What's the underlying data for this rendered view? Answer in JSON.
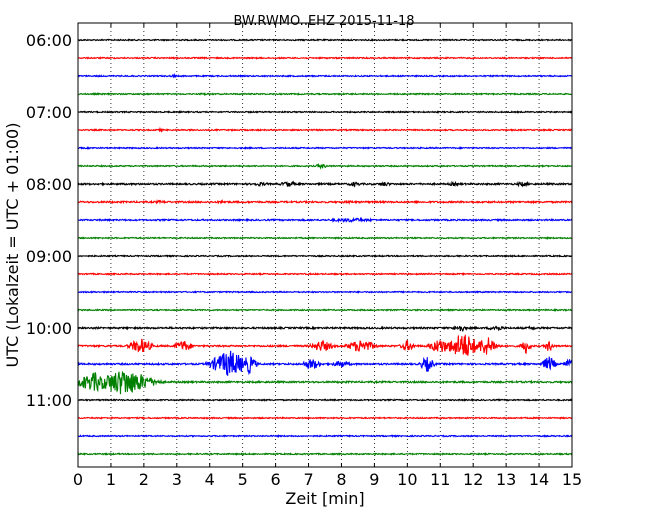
{
  "chart_data": {
    "type": "line",
    "title": "BW.RWMO..EHZ 2015-11-18",
    "xlabel": "Zeit  [min]",
    "ylabel": "UTC (Lokalzeit = UTC + 01:00)",
    "xlim": [
      0,
      15
    ],
    "x_ticks": [
      "0",
      "1",
      "2",
      "3",
      "4",
      "5",
      "6",
      "7",
      "8",
      "9",
      "10",
      "11",
      "12",
      "13",
      "14",
      "15"
    ],
    "y_ticks": [
      "06:00",
      "07:00",
      "08:00",
      "09:00",
      "10:00",
      "11:00"
    ],
    "grid": true,
    "trace_interval_minutes": 15,
    "trace_colors": [
      "#000000",
      "#ff0000",
      "#0000ff",
      "#008000"
    ],
    "traces": [
      {
        "start": "06:00",
        "color": "#000000",
        "amplitude": 0.6,
        "bursts": []
      },
      {
        "start": "06:15",
        "color": "#ff0000",
        "amplitude": 0.6,
        "bursts": []
      },
      {
        "start": "06:30",
        "color": "#0000ff",
        "amplitude": 0.6,
        "bursts": [
          {
            "t": 2.9,
            "amp": 1.5,
            "dur": 0.2
          }
        ]
      },
      {
        "start": "06:45",
        "color": "#008000",
        "amplitude": 0.6,
        "bursts": [
          {
            "t": 3.8,
            "amp": 1.5,
            "dur": 0.2
          }
        ]
      },
      {
        "start": "07:00",
        "color": "#000000",
        "amplitude": 0.6,
        "bursts": []
      },
      {
        "start": "07:15",
        "color": "#ff0000",
        "amplitude": 0.6,
        "bursts": [
          {
            "t": 2.5,
            "amp": 1.5,
            "dur": 0.2
          }
        ]
      },
      {
        "start": "07:30",
        "color": "#0000ff",
        "amplitude": 0.6,
        "bursts": []
      },
      {
        "start": "07:45",
        "color": "#008000",
        "amplitude": 0.6,
        "bursts": [
          {
            "t": 7.4,
            "amp": 2.5,
            "dur": 0.3
          }
        ]
      },
      {
        "start": "08:00",
        "color": "#000000",
        "amplitude": 0.8,
        "bursts": [
          {
            "t": 5.5,
            "amp": 2.0,
            "dur": 0.5
          },
          {
            "t": 6.4,
            "amp": 3.0,
            "dur": 0.4
          },
          {
            "t": 8.4,
            "amp": 2.5,
            "dur": 0.3
          },
          {
            "t": 9.3,
            "amp": 2.5,
            "dur": 0.3
          },
          {
            "t": 11.4,
            "amp": 2.0,
            "dur": 0.3
          },
          {
            "t": 13.5,
            "amp": 2.5,
            "dur": 0.3
          }
        ]
      },
      {
        "start": "08:15",
        "color": "#ff0000",
        "amplitude": 0.8,
        "bursts": [
          {
            "t": 2.5,
            "amp": 1.5,
            "dur": 0.4
          },
          {
            "t": 4.4,
            "amp": 1.5,
            "dur": 0.4
          },
          {
            "t": 8.2,
            "amp": 1.8,
            "dur": 0.3
          }
        ]
      },
      {
        "start": "08:30",
        "color": "#0000ff",
        "amplitude": 0.7,
        "bursts": [
          {
            "t": 8.3,
            "amp": 2.0,
            "dur": 1.2
          }
        ]
      },
      {
        "start": "08:45",
        "color": "#008000",
        "amplitude": 0.6,
        "bursts": []
      },
      {
        "start": "09:00",
        "color": "#000000",
        "amplitude": 0.6,
        "bursts": []
      },
      {
        "start": "09:15",
        "color": "#ff0000",
        "amplitude": 0.6,
        "bursts": []
      },
      {
        "start": "09:30",
        "color": "#0000ff",
        "amplitude": 0.6,
        "bursts": []
      },
      {
        "start": "09:45",
        "color": "#008000",
        "amplitude": 0.6,
        "bursts": []
      },
      {
        "start": "10:00",
        "color": "#000000",
        "amplitude": 0.8,
        "bursts": [
          {
            "t": 11.6,
            "amp": 4.0,
            "dur": 0.3
          },
          {
            "t": 12.7,
            "amp": 3.0,
            "dur": 0.4
          },
          {
            "t": 13.8,
            "amp": 2.0,
            "dur": 0.3
          }
        ]
      },
      {
        "start": "10:15",
        "color": "#ff0000",
        "amplitude": 0.8,
        "bursts": [
          {
            "t": 1.9,
            "amp": 8.0,
            "dur": 0.5
          },
          {
            "t": 3.2,
            "amp": 6.0,
            "dur": 0.4
          },
          {
            "t": 7.4,
            "amp": 6.0,
            "dur": 0.5
          },
          {
            "t": 8.6,
            "amp": 7.0,
            "dur": 0.6
          },
          {
            "t": 10.0,
            "amp": 6.0,
            "dur": 0.3
          },
          {
            "t": 11.0,
            "amp": 8.0,
            "dur": 0.5
          },
          {
            "t": 11.7,
            "amp": 14.0,
            "dur": 0.7
          },
          {
            "t": 12.4,
            "amp": 10.0,
            "dur": 0.5
          },
          {
            "t": 13.6,
            "amp": 8.0,
            "dur": 0.2
          },
          {
            "t": 14.3,
            "amp": 6.0,
            "dur": 0.2
          }
        ]
      },
      {
        "start": "10:30",
        "color": "#0000ff",
        "amplitude": 0.8,
        "bursts": [
          {
            "t": 4.6,
            "amp": 14.0,
            "dur": 0.8
          },
          {
            "t": 5.2,
            "amp": 10.0,
            "dur": 0.3
          },
          {
            "t": 7.1,
            "amp": 6.0,
            "dur": 0.4
          },
          {
            "t": 8.0,
            "amp": 4.0,
            "dur": 0.4
          },
          {
            "t": 10.6,
            "amp": 8.0,
            "dur": 0.3
          },
          {
            "t": 14.3,
            "amp": 8.0,
            "dur": 0.3
          },
          {
            "t": 14.9,
            "amp": 6.0,
            "dur": 0.2
          }
        ]
      },
      {
        "start": "10:45",
        "color": "#008000",
        "amplitude": 0.8,
        "bursts": [
          {
            "t": 0.5,
            "amp": 10.0,
            "dur": 0.8
          },
          {
            "t": 1.4,
            "amp": 14.0,
            "dur": 1.2
          },
          {
            "t": 2.3,
            "amp": 4.0,
            "dur": 0.4
          }
        ]
      },
      {
        "start": "11:00",
        "color": "#000000",
        "amplitude": 0.6,
        "bursts": []
      },
      {
        "start": "11:15",
        "color": "#ff0000",
        "amplitude": 0.6,
        "bursts": []
      },
      {
        "start": "11:30",
        "color": "#0000ff",
        "amplitude": 0.6,
        "bursts": []
      },
      {
        "start": "11:45",
        "color": "#008000",
        "amplitude": 0.6,
        "bursts": []
      }
    ]
  }
}
